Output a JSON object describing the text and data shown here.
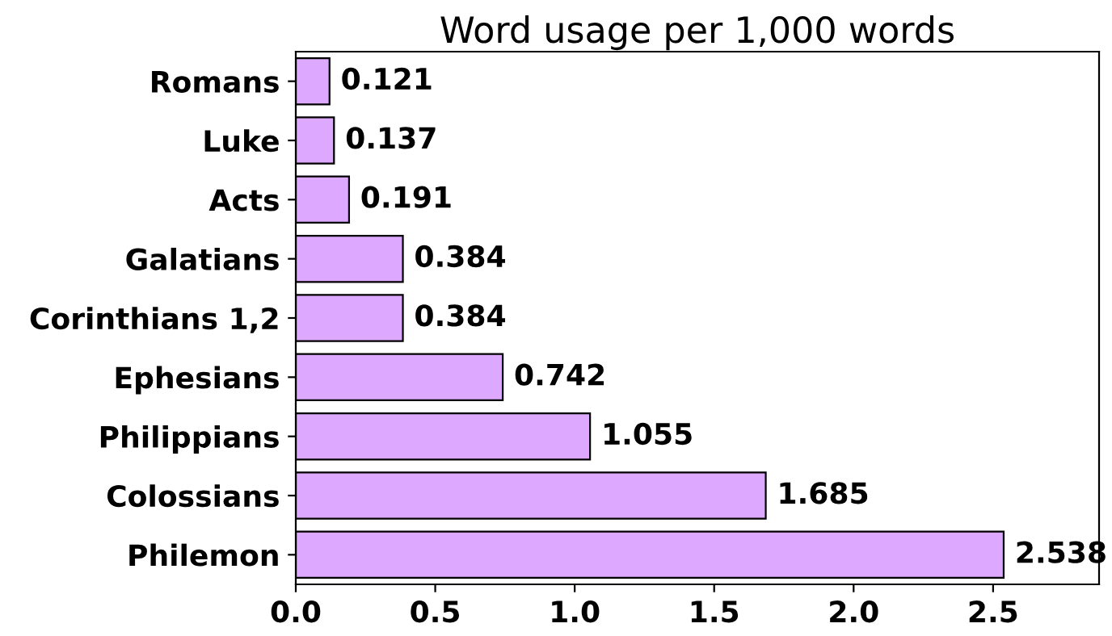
{
  "chart_data": {
    "type": "bar",
    "orientation": "horizontal",
    "title": "Word usage per 1,000 words",
    "categories": [
      "Romans",
      "Luke",
      "Acts",
      "Galatians",
      "Corinthians 1,2",
      "Ephesians",
      "Philippians",
      "Colossians",
      "Philemon"
    ],
    "values": [
      0.121,
      0.137,
      0.191,
      0.384,
      0.384,
      0.742,
      1.055,
      1.685,
      2.538
    ],
    "color": "#dda8ff",
    "data_labels": true,
    "grid": false,
    "legend": false,
    "xlim": [
      0,
      2.88
    ],
    "xticks": [
      {
        "value": 0,
        "label": "0.0"
      },
      {
        "value": 0.5,
        "label": "0.5"
      },
      {
        "value": 1,
        "label": "1.0"
      },
      {
        "value": 1.5,
        "label": "1.5"
      },
      {
        "value": 2,
        "label": "2.0"
      },
      {
        "value": 2.5,
        "label": "2.5"
      }
    ]
  }
}
